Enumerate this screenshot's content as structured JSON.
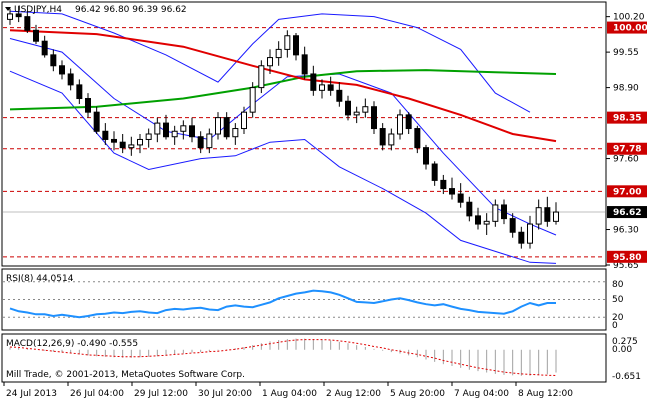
{
  "header": {
    "symbol_tf": "USDJPY,H4",
    "ohlc": "96.42 96.80 96.39 96.62",
    "current_price_label": "96.62"
  },
  "rsi": {
    "label": "RSI(8) 44.0514",
    "levels": [
      "80",
      "50",
      "20",
      "0"
    ]
  },
  "macd": {
    "label": "MACD(12,26,9) -0.490 -0.555",
    "axis": [
      "0.275",
      "0.00",
      "-0.651"
    ]
  },
  "watermark": "Mill Trade, © 2001-2013, MetaQuotes Software Corp.",
  "colors": {
    "candle": "#000000",
    "bollinger": "#1a1aff",
    "ma_red": "#e00000",
    "ma_green": "#00a000",
    "level_red": "#cc0000",
    "rsi": "#1e90ff",
    "price_line": "#bfbfbf"
  },
  "chart_data": [
    {
      "type": "candlestick",
      "title": "USDJPY,H4",
      "ylim": [
        95.65,
        100.45
      ],
      "y_ticks": [
        "100.20",
        "99.55",
        "98.90",
        "97.60",
        "96.30",
        "95.65"
      ],
      "x_ticks": [
        "24 Jul 2013",
        "26 Jul 04:00",
        "29 Jul 12:00",
        "30 Jul 20:00",
        "1 Aug 04:00",
        "2 Aug 12:00",
        "5 Aug 20:00",
        "7 Aug 04:00",
        "8 Aug 12:00"
      ],
      "levels": [
        {
          "value": 100.0,
          "label": "100.00"
        },
        {
          "value": 98.35,
          "label": "98.35"
        },
        {
          "value": 97.78,
          "label": "97.78"
        },
        {
          "value": 97.0,
          "label": "97.00"
        },
        {
          "value": 95.8,
          "label": "95.80"
        }
      ],
      "current_price": 96.62,
      "candles": [
        [
          100.15,
          100.35,
          100.05,
          100.25
        ],
        [
          100.25,
          100.4,
          100.1,
          100.2
        ],
        [
          100.2,
          100.3,
          99.9,
          99.95
        ],
        [
          99.95,
          100.05,
          99.7,
          99.75
        ],
        [
          99.75,
          99.85,
          99.45,
          99.5
        ],
        [
          99.5,
          99.6,
          99.2,
          99.3
        ],
        [
          99.3,
          99.4,
          99.05,
          99.15
        ],
        [
          99.15,
          99.25,
          98.85,
          98.95
        ],
        [
          98.95,
          99.05,
          98.6,
          98.7
        ],
        [
          98.7,
          98.8,
          98.35,
          98.45
        ],
        [
          98.45,
          98.55,
          98.05,
          98.1
        ],
        [
          98.1,
          98.25,
          97.85,
          97.95
        ],
        [
          97.95,
          98.1,
          97.75,
          97.9
        ],
        [
          97.9,
          98.05,
          97.7,
          97.8
        ],
        [
          97.8,
          98.0,
          97.65,
          97.85
        ],
        [
          97.85,
          98.05,
          97.7,
          97.95
        ],
        [
          97.95,
          98.15,
          97.8,
          98.05
        ],
        [
          98.05,
          98.35,
          97.9,
          98.25
        ],
        [
          98.25,
          98.4,
          97.95,
          98.0
        ],
        [
          98.0,
          98.2,
          97.85,
          98.1
        ],
        [
          98.1,
          98.3,
          97.95,
          98.2
        ],
        [
          98.2,
          98.35,
          97.9,
          98.0
        ],
        [
          98.0,
          98.1,
          97.7,
          97.8
        ],
        [
          97.8,
          98.15,
          97.7,
          98.05
        ],
        [
          98.05,
          98.45,
          97.95,
          98.35
        ],
        [
          98.35,
          98.45,
          97.95,
          98.0
        ],
        [
          98.0,
          98.25,
          97.85,
          98.15
        ],
        [
          98.15,
          98.55,
          98.05,
          98.45
        ],
        [
          98.45,
          99.0,
          98.35,
          98.9
        ],
        [
          98.9,
          99.4,
          98.8,
          99.3
        ],
        [
          99.3,
          99.6,
          99.15,
          99.45
        ],
        [
          99.45,
          99.75,
          99.3,
          99.6
        ],
        [
          99.6,
          99.95,
          99.45,
          99.85
        ],
        [
          99.85,
          99.9,
          99.4,
          99.5
        ],
        [
          99.5,
          99.65,
          99.05,
          99.15
        ],
        [
          99.15,
          99.3,
          98.75,
          98.85
        ],
        [
          98.85,
          99.05,
          98.7,
          98.95
        ],
        [
          98.95,
          99.1,
          98.75,
          98.85
        ],
        [
          98.85,
          99.0,
          98.55,
          98.65
        ],
        [
          98.65,
          98.75,
          98.3,
          98.4
        ],
        [
          98.4,
          98.55,
          98.25,
          98.45
        ],
        [
          98.45,
          98.7,
          98.35,
          98.55
        ],
        [
          98.55,
          98.65,
          98.05,
          98.15
        ],
        [
          98.15,
          98.25,
          97.75,
          97.85
        ],
        [
          97.85,
          98.15,
          97.75,
          98.05
        ],
        [
          98.05,
          98.5,
          97.95,
          98.4
        ],
        [
          98.4,
          98.45,
          98.05,
          98.15
        ],
        [
          98.15,
          98.2,
          97.7,
          97.8
        ],
        [
          97.8,
          97.85,
          97.4,
          97.5
        ],
        [
          97.5,
          97.55,
          97.1,
          97.2
        ],
        [
          97.2,
          97.3,
          96.95,
          97.05
        ],
        [
          97.05,
          97.25,
          96.85,
          96.95
        ],
        [
          96.95,
          97.15,
          96.7,
          96.8
        ],
        [
          96.8,
          96.9,
          96.45,
          96.55
        ],
        [
          96.55,
          96.7,
          96.3,
          96.4
        ],
        [
          96.4,
          96.6,
          96.2,
          96.45
        ],
        [
          96.45,
          96.85,
          96.35,
          96.75
        ],
        [
          96.75,
          96.85,
          96.4,
          96.5
        ],
        [
          96.5,
          96.6,
          96.15,
          96.25
        ],
        [
          96.25,
          96.35,
          95.95,
          96.05
        ],
        [
          96.05,
          96.55,
          95.95,
          96.4
        ],
        [
          96.4,
          96.85,
          96.3,
          96.7
        ],
        [
          96.7,
          96.9,
          96.35,
          96.45
        ],
        [
          96.45,
          96.8,
          96.39,
          96.62
        ]
      ],
      "ma_red": [
        [
          0,
          99.95
        ],
        [
          10,
          99.88
        ],
        [
          20,
          99.65
        ],
        [
          28,
          99.3
        ],
        [
          34,
          99.05
        ],
        [
          40,
          98.95
        ],
        [
          46,
          98.7
        ],
        [
          52,
          98.4
        ],
        [
          58,
          98.05
        ],
        [
          63,
          97.92
        ]
      ],
      "ma_green": [
        [
          0,
          98.5
        ],
        [
          10,
          98.55
        ],
        [
          20,
          98.7
        ],
        [
          28,
          98.9
        ],
        [
          34,
          99.1
        ],
        [
          40,
          99.2
        ],
        [
          48,
          99.22
        ],
        [
          56,
          99.18
        ],
        [
          63,
          99.15
        ]
      ],
      "bb_upper": [
        [
          0,
          100.3
        ],
        [
          6,
          100.25
        ],
        [
          12,
          99.9
        ],
        [
          18,
          99.5
        ],
        [
          24,
          99.0
        ],
        [
          28,
          99.7
        ],
        [
          31,
          100.15
        ],
        [
          36,
          100.25
        ],
        [
          42,
          100.2
        ],
        [
          47,
          100.0
        ],
        [
          52,
          99.6
        ],
        [
          56,
          98.8
        ],
        [
          60,
          98.45
        ]
      ],
      "bb_middle": [
        [
          0,
          99.8
        ],
        [
          6,
          99.55
        ],
        [
          12,
          98.7
        ],
        [
          18,
          98.1
        ],
        [
          23,
          97.95
        ],
        [
          28,
          98.6
        ],
        [
          32,
          99.1
        ],
        [
          38,
          99.15
        ],
        [
          44,
          98.8
        ],
        [
          50,
          97.7
        ],
        [
          56,
          96.7
        ],
        [
          60,
          96.4
        ],
        [
          63,
          96.2
        ]
      ],
      "bb_lower": [
        [
          0,
          99.2
        ],
        [
          6,
          98.8
        ],
        [
          12,
          97.7
        ],
        [
          16,
          97.4
        ],
        [
          22,
          97.6
        ],
        [
          26,
          97.65
        ],
        [
          30,
          97.9
        ],
        [
          34,
          97.95
        ],
        [
          38,
          97.45
        ],
        [
          43,
          97.05
        ],
        [
          48,
          96.6
        ],
        [
          52,
          96.1
        ],
        [
          57,
          95.85
        ],
        [
          60,
          95.7
        ],
        [
          63,
          95.68
        ]
      ]
    },
    {
      "type": "line",
      "title": "RSI(8) 44.0514",
      "ylim": [
        0,
        100
      ],
      "values": [
        35,
        30,
        28,
        25,
        25,
        22,
        24,
        22,
        20,
        22,
        25,
        26,
        28,
        27,
        29,
        30,
        28,
        27,
        32,
        34,
        33,
        35,
        36,
        33,
        32,
        38,
        40,
        38,
        37,
        41,
        45,
        52,
        56,
        60,
        62,
        65,
        64,
        62,
        58,
        52,
        46,
        45,
        44,
        47,
        50,
        52,
        49,
        45,
        42,
        40,
        42,
        38,
        34,
        32,
        29,
        28,
        27,
        26,
        30,
        38,
        44,
        40,
        44,
        44
      ]
    },
    {
      "type": "bar",
      "title": "MACD(12,26,9) -0.490 -0.555",
      "ylim": [
        -0.651,
        0.275
      ],
      "values": [
        0.05,
        0.04,
        0.02,
        0.0,
        -0.02,
        -0.04,
        -0.06,
        -0.08,
        -0.1,
        -0.12,
        -0.14,
        -0.15,
        -0.16,
        -0.17,
        -0.17,
        -0.16,
        -0.15,
        -0.14,
        -0.12,
        -0.1,
        -0.08,
        -0.06,
        -0.05,
        -0.03,
        -0.01,
        0.01,
        0.03,
        0.06,
        0.1,
        0.14,
        0.18,
        0.21,
        0.23,
        0.24,
        0.24,
        0.23,
        0.22,
        0.2,
        0.17,
        0.14,
        0.1,
        0.06,
        0.02,
        -0.02,
        -0.05,
        -0.08,
        -0.12,
        -0.16,
        -0.21,
        -0.26,
        -0.31,
        -0.35,
        -0.39,
        -0.43,
        -0.46,
        -0.49,
        -0.52,
        -0.54,
        -0.55,
        -0.56,
        -0.56,
        -0.55,
        -0.53,
        -0.49
      ],
      "signal": [
        0.06,
        0.05,
        0.03,
        0.01,
        -0.01,
        -0.03,
        -0.05,
        -0.07,
        -0.09,
        -0.11,
        -0.12,
        -0.13,
        -0.14,
        -0.15,
        -0.15,
        -0.15,
        -0.14,
        -0.13,
        -0.12,
        -0.1,
        -0.09,
        -0.07,
        -0.06,
        -0.04,
        -0.03,
        -0.01,
        0.01,
        0.04,
        0.07,
        0.1,
        0.13,
        0.16,
        0.19,
        0.21,
        0.22,
        0.22,
        0.22,
        0.21,
        0.19,
        0.17,
        0.14,
        0.11,
        0.07,
        0.04,
        0.0,
        -0.03,
        -0.07,
        -0.1,
        -0.14,
        -0.18,
        -0.23,
        -0.27,
        -0.31,
        -0.35,
        -0.39,
        -0.42,
        -0.45,
        -0.48,
        -0.5,
        -0.52,
        -0.53,
        -0.54,
        -0.55,
        -0.555
      ]
    }
  ]
}
